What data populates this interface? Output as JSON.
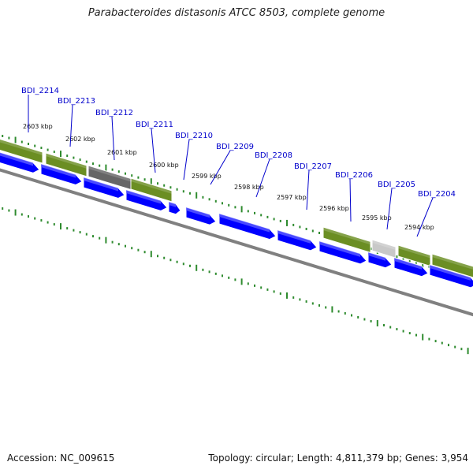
{
  "title": "Parabacteroides distasonis ATCC 8503, complete genome",
  "footer": {
    "accession": "Accession: NC_009615",
    "summary": "Topology: circular; Length: 4,811,379 bp; Genes: 3,954"
  },
  "ticks": [
    "2603 kbp",
    "2602 kbp",
    "2601 kbp",
    "2600 kbp",
    "2599 kbp",
    "2598 kbp",
    "2597 kbp",
    "2596 kbp",
    "2595 kbp",
    "2594 kbp"
  ],
  "genes": [
    "BDI_2214",
    "BDI_2213",
    "BDI_2212",
    "BDI_2211",
    "BDI_2210",
    "BDI_2209",
    "BDI_2208",
    "BDI_2207",
    "BDI_2206",
    "BDI_2205",
    "BDI_2204"
  ],
  "colors": {
    "gene_label": "#0000cc",
    "cds": "#0000ff",
    "cds_light": "#6a6aff",
    "olive": "#6b8e23",
    "olive_light": "#9aba55",
    "dark_gray": "#666666",
    "light_gray": "#c8c8c8",
    "backbone": "#808080",
    "tick": "#2e8b2e"
  }
}
